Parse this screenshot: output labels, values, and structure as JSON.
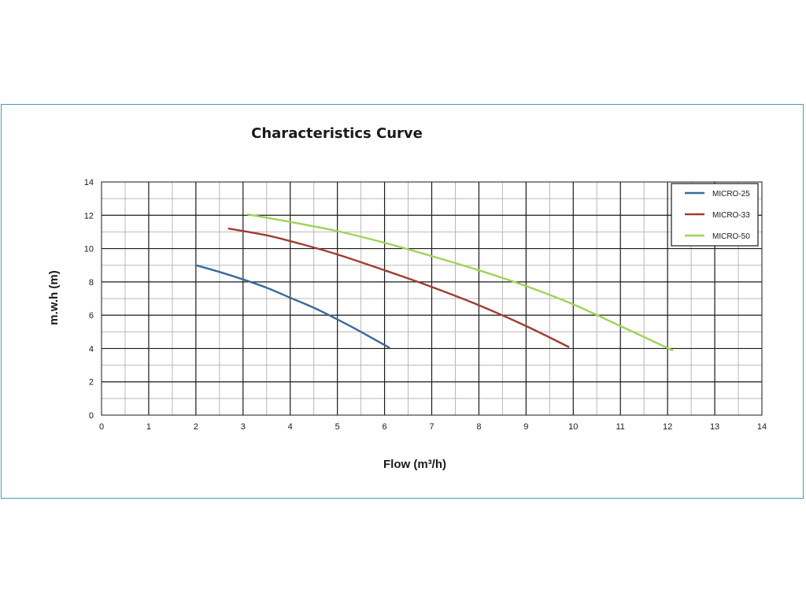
{
  "chart_data": {
    "type": "line",
    "title": "Characteristics Curve",
    "xlabel": "Flow (m³/h)",
    "ylabel": "m.w.h (m)",
    "xlim": [
      0,
      14
    ],
    "ylim": [
      0,
      14
    ],
    "xticks": [
      "0",
      "1",
      "2",
      "3",
      "4",
      "5",
      "6",
      "7",
      "8",
      "9",
      "10",
      "11",
      "12",
      "13",
      "14"
    ],
    "yticks": [
      "0",
      "2",
      "4",
      "6",
      "8",
      "10",
      "12",
      "14"
    ],
    "grid": true,
    "legend_position": "top-right",
    "series": [
      {
        "name": "MICRO-25",
        "color": "#3b6a9c",
        "points": [
          [
            2.0,
            9.0
          ],
          [
            2.5,
            8.6
          ],
          [
            3.0,
            8.15
          ],
          [
            3.5,
            7.65
          ],
          [
            4.0,
            7.05
          ],
          [
            4.5,
            6.45
          ],
          [
            5.0,
            5.75
          ],
          [
            5.5,
            5.0
          ],
          [
            6.1,
            4.05
          ]
        ]
      },
      {
        "name": "MICRO-33",
        "color": "#9e3d34",
        "points": [
          [
            2.7,
            11.2
          ],
          [
            3.5,
            10.8
          ],
          [
            4.2,
            10.3
          ],
          [
            5.0,
            9.65
          ],
          [
            6.0,
            8.7
          ],
          [
            7.0,
            7.7
          ],
          [
            8.0,
            6.6
          ],
          [
            9.0,
            5.35
          ],
          [
            9.9,
            4.1
          ]
        ]
      },
      {
        "name": "MICRO-50",
        "color": "#9dd45a",
        "points": [
          [
            3.1,
            12.05
          ],
          [
            4.0,
            11.6
          ],
          [
            5.0,
            11.05
          ],
          [
            6.0,
            10.35
          ],
          [
            7.0,
            9.55
          ],
          [
            8.0,
            8.7
          ],
          [
            9.0,
            7.75
          ],
          [
            10.0,
            6.65
          ],
          [
            11.0,
            5.35
          ],
          [
            12.1,
            3.9
          ]
        ]
      }
    ]
  }
}
